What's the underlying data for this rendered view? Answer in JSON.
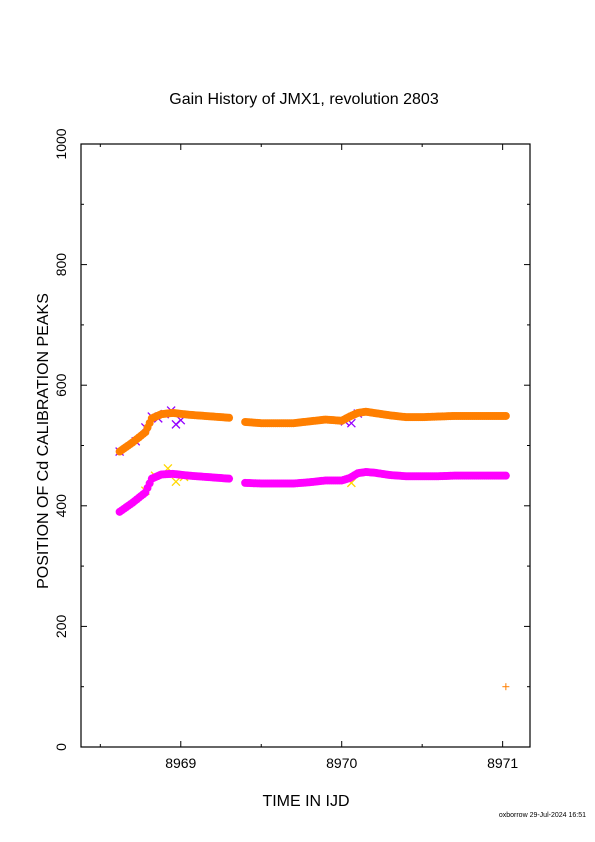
{
  "chart_data": {
    "type": "scatter",
    "title": "Gain History of JMX1, revolution 2803",
    "xlabel": "TIME IN IJD",
    "ylabel": "POSITION OF Cd CALIBRATION PEAKS",
    "xlim": [
      8968.38,
      8971.17
    ],
    "ylim": [
      0,
      1000
    ],
    "x_ticks": [
      8969,
      8970,
      8971
    ],
    "y_ticks": [
      0,
      200,
      400,
      600,
      800,
      1000
    ],
    "x_tick_labels": [
      "8969",
      "8970",
      "8971"
    ],
    "y_tick_labels": [
      "0",
      "200",
      "400",
      "600",
      "800",
      "1000"
    ],
    "grid": false,
    "legend": "none",
    "footer": "oxborrow 29-Jul-2024 16:51",
    "series": [
      {
        "role": "upper peak (raw)",
        "marker": "x",
        "color": "#9400ff",
        "x": [
          8968.62,
          8968.72,
          8968.78,
          8968.82,
          8968.86,
          8968.9,
          8968.94,
          8968.97,
          8969.0,
          8970.02,
          8970.06,
          8970.1
        ],
        "y": [
          490,
          507,
          530,
          548,
          545,
          552,
          558,
          535,
          542,
          540,
          537,
          553
        ]
      },
      {
        "role": "lower peak (raw)",
        "marker": "x",
        "color": "#ffd700",
        "x": [
          8968.78,
          8968.84,
          8968.92,
          8968.97,
          8969.02,
          8970.06
        ],
        "y": [
          425,
          450,
          462,
          440,
          448,
          438
        ]
      },
      {
        "role": "upper peak",
        "marker": "+",
        "color": "#ff7f00",
        "x": [
          8968.62,
          8968.7,
          8968.78,
          8968.82,
          8968.88,
          8968.95,
          8969.05,
          8969.15,
          8969.25,
          8969.3,
          8969.4,
          8969.5,
          8969.6,
          8969.7,
          8969.8,
          8969.9,
          8970.0,
          8970.05,
          8970.1,
          8970.15,
          8970.2,
          8970.25,
          8970.3,
          8970.4,
          8970.5,
          8970.6,
          8970.7,
          8970.8,
          8970.9,
          8971.02
        ],
        "y": [
          490,
          505,
          522,
          545,
          552,
          554,
          551,
          549,
          547,
          546,
          539,
          537,
          537,
          537,
          540,
          543,
          541,
          548,
          554,
          556,
          554,
          552,
          550,
          547,
          547,
          548,
          549,
          549,
          549,
          549
        ]
      },
      {
        "role": "lower peak",
        "marker": "+",
        "color": "#ff00ff",
        "x": [
          8968.62,
          8968.7,
          8968.78,
          8968.82,
          8968.88,
          8968.95,
          8969.05,
          8969.15,
          8969.25,
          8969.3,
          8969.4,
          8969.5,
          8969.6,
          8969.7,
          8969.8,
          8969.9,
          8970.0,
          8970.05,
          8970.1,
          8970.15,
          8970.2,
          8970.25,
          8970.3,
          8970.4,
          8970.5,
          8970.6,
          8970.7,
          8970.8,
          8970.9,
          8971.02
        ],
        "y": [
          390,
          405,
          422,
          445,
          452,
          453,
          450,
          448,
          446,
          445,
          438,
          437,
          437,
          437,
          439,
          442,
          442,
          446,
          454,
          456,
          455,
          453,
          451,
          449,
          449,
          449,
          450,
          450,
          450,
          450
        ]
      },
      {
        "role": "outlier",
        "marker": "+",
        "color": "#ff7f00",
        "x": [
          8971.02
        ],
        "y": [
          100
        ]
      }
    ]
  }
}
